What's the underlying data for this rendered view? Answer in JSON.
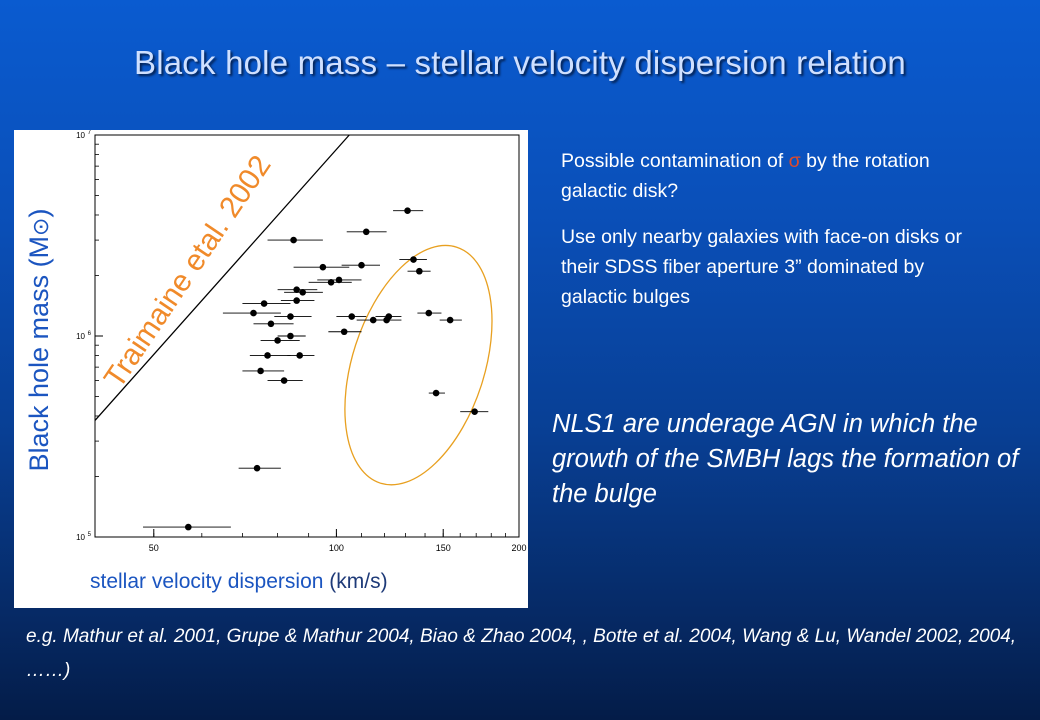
{
  "title": "Black hole mass – stellar velocity dispersion relation",
  "bullets": {
    "b1_pre": "Possible contamination of ",
    "b1_sigma": "σ",
    "b1_post": " by the rotation galactic disk?",
    "b2": "Use only nearby galaxies with face-on disks or their SDSS fiber aperture 3” dominated by galactic bulges"
  },
  "nls_text": "NLS1 are underage AGN in which the growth of the SMBH lags the formation of  the bulge",
  "references": "e.g. Mathur et al. 2001, Grupe & Mathur 2004, Biao & Zhao 2004, , Botte et al. 2004, Wang & Lu, Wandel 2002, 2004, ……)",
  "colors": {
    "axis_label": "#1b55c0",
    "relation_label": "#f08a2a",
    "ellipse": "#e8a020",
    "points": "#000000"
  },
  "chart_data": {
    "type": "scatter",
    "xlabel_main": "stellar velocity dispersion ",
    "xlabel_unit": "(km/s)",
    "ylabel_main": "Black hole mass (M",
    "ylabel_sun": "⊙",
    "ylabel_close": ")",
    "xscale": "log",
    "yscale": "log",
    "xlim": [
      40,
      200
    ],
    "ylim": [
      100000,
      10000000
    ],
    "x_ticks": [
      {
        "value": 50,
        "label": "50"
      },
      {
        "value": 100,
        "label": "100"
      },
      {
        "value": 150,
        "label": "150"
      },
      {
        "value": 200,
        "label": "200"
      }
    ],
    "y_ticks": [
      {
        "value": 100000,
        "base": "10",
        "exp": "5"
      },
      {
        "value": 1000000,
        "base": "10",
        "exp": "6"
      },
      {
        "value": 10000000,
        "base": "10",
        "exp": "7"
      }
    ],
    "relation": {
      "label": "Traimaine etal. 2002",
      "p1": [
        40,
        380000
      ],
      "p2": [
        105,
        10000000
      ]
    },
    "highlight_ellipse": {
      "center": [
        135,
        700000
      ],
      "note": "NLS1 highlighted region"
    },
    "points": [
      {
        "x": 57,
        "y": 112000,
        "xerr": [
          48,
          67
        ]
      },
      {
        "x": 74,
        "y": 220000,
        "xerr": [
          69,
          81
        ]
      },
      {
        "x": 73,
        "y": 1300000,
        "xerr": [
          65,
          81
        ]
      },
      {
        "x": 76,
        "y": 1450000,
        "xerr": [
          70,
          84
        ]
      },
      {
        "x": 78,
        "y": 1150000,
        "xerr": [
          73,
          85
        ]
      },
      {
        "x": 80,
        "y": 950000,
        "xerr": [
          75,
          87
        ]
      },
      {
        "x": 77,
        "y": 800000,
        "xerr": [
          72,
          84
        ]
      },
      {
        "x": 75,
        "y": 670000,
        "xerr": [
          70,
          82
        ]
      },
      {
        "x": 82,
        "y": 600000,
        "xerr": [
          77,
          88
        ]
      },
      {
        "x": 85,
        "y": 3000000,
        "xerr": [
          77,
          95
        ]
      },
      {
        "x": 86,
        "y": 1700000,
        "xerr": [
          80,
          93
        ]
      },
      {
        "x": 88,
        "y": 1650000,
        "xerr": [
          82,
          95
        ]
      },
      {
        "x": 84,
        "y": 1250000,
        "xerr": [
          79,
          91
        ]
      },
      {
        "x": 86,
        "y": 1500000,
        "xerr": [
          81,
          92
        ]
      },
      {
        "x": 87,
        "y": 800000,
        "xerr": [
          83,
          92
        ]
      },
      {
        "x": 84,
        "y": 1000000,
        "xerr": [
          80,
          89
        ]
      },
      {
        "x": 95,
        "y": 2200000,
        "xerr": [
          85,
          105
        ]
      },
      {
        "x": 98,
        "y": 1850000,
        "xerr": [
          90,
          106
        ]
      },
      {
        "x": 101,
        "y": 1900000,
        "xerr": [
          93,
          110
        ]
      },
      {
        "x": 103,
        "y": 1050000,
        "xerr": [
          97,
          110
        ]
      },
      {
        "x": 106,
        "y": 1250000,
        "xerr": [
          100,
          112
        ]
      },
      {
        "x": 110,
        "y": 2250000,
        "xerr": [
          102,
          118
        ]
      },
      {
        "x": 112,
        "y": 3300000,
        "xerr": [
          104,
          121
        ]
      },
      {
        "x": 115,
        "y": 1200000,
        "xerr": [
          108,
          122
        ]
      },
      {
        "x": 121,
        "y": 1200000,
        "xerr": [
          114,
          128
        ]
      },
      {
        "x": 122,
        "y": 1250000,
        "xerr": [
          116,
          128
        ]
      },
      {
        "x": 131,
        "y": 4200000,
        "xerr": [
          124,
          139
        ]
      },
      {
        "x": 134,
        "y": 2400000,
        "xerr": [
          127,
          141
        ]
      },
      {
        "x": 137,
        "y": 2100000,
        "xerr": [
          131,
          143
        ]
      },
      {
        "x": 142,
        "y": 1300000,
        "xerr": [
          136,
          149
        ]
      },
      {
        "x": 146,
        "y": 520000,
        "xerr": [
          142,
          151
        ]
      },
      {
        "x": 154,
        "y": 1200000,
        "xerr": [
          148,
          161
        ]
      },
      {
        "x": 169,
        "y": 420000,
        "xerr": [
          160,
          178
        ]
      }
    ]
  }
}
